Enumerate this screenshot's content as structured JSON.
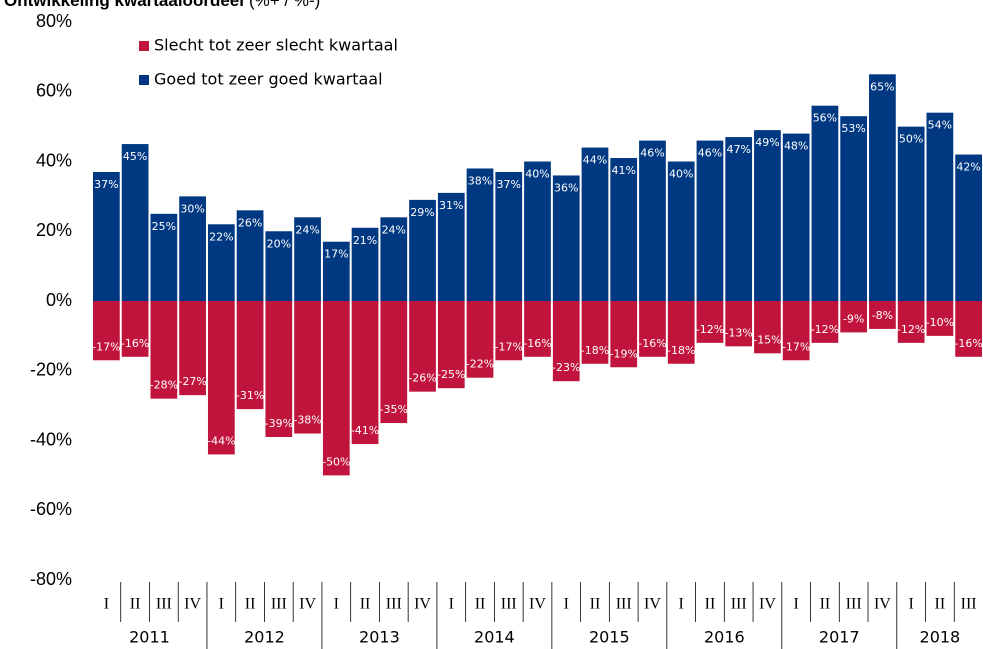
{
  "chart_data": {
    "type": "bar",
    "title": "Ontwikkeling kwartaaloordeel",
    "subtitle": "(%+ / %-)",
    "categories": [
      "I",
      "II",
      "III",
      "IV",
      "I",
      "II",
      "III",
      "IV",
      "I",
      "II",
      "III",
      "IV",
      "I",
      "II",
      "III",
      "IV",
      "I",
      "II",
      "III",
      "IV",
      "I",
      "II",
      "III",
      "IV",
      "I",
      "II",
      "III",
      "IV",
      "I",
      "II",
      "III"
    ],
    "year_labels": [
      "2011",
      "2012",
      "2013",
      "2014",
      "2015",
      "2016",
      "2017",
      "2018"
    ],
    "series": [
      {
        "name": "Slecht tot zeer slecht kwartaal",
        "color": "#c0143c",
        "values": [
          -17,
          -16,
          -28,
          -27,
          -44,
          -31,
          -39,
          -38,
          -50,
          -41,
          -35,
          -26,
          -25,
          -22,
          -17,
          -16,
          -23,
          -18,
          -19,
          -16,
          -18,
          -12,
          -13,
          -15,
          -17,
          -12,
          -9,
          -8,
          -12,
          -10,
          -16
        ],
        "value_labels": [
          "-17%",
          "-16%",
          "-28%",
          "-27%",
          "-44%",
          "-31%",
          "-39%",
          "-38%",
          "-50%",
          "-41%",
          "-35%",
          "-26%",
          "-25%",
          "-22%",
          "-17%",
          "-16%",
          "-23%",
          "-18%",
          "-19%",
          "-16%",
          "-18%",
          "-12%",
          "-13%",
          "-15%",
          "-17%",
          "-12%",
          "-9%",
          "-8%",
          "-12%",
          "-10%",
          "-16%"
        ]
      },
      {
        "name": "Goed tot zeer goed kwartaal",
        "color": "#003882",
        "values": [
          37,
          45,
          25,
          30,
          22,
          26,
          20,
          24,
          17,
          21,
          24,
          29,
          31,
          38,
          37,
          40,
          36,
          44,
          41,
          46,
          40,
          46,
          47,
          49,
          48,
          56,
          53,
          65,
          50,
          54,
          42
        ],
        "value_labels": [
          "37%",
          "45%",
          "25%",
          "30%",
          "22%",
          "26%",
          "20%",
          "24%",
          "17%",
          "21%",
          "24%",
          "29%",
          "31%",
          "38%",
          "37%",
          "40%",
          "36%",
          "44%",
          "41%",
          "46%",
          "40%",
          "46%",
          "47%",
          "49%",
          "48%",
          "56%",
          "53%",
          "65%",
          "50%",
          "54%",
          "42%"
        ]
      }
    ],
    "ylim": [
      -80,
      80
    ],
    "yticks": [
      {
        "value": -80,
        "label": "-80%"
      },
      {
        "value": -60,
        "label": "-60%"
      },
      {
        "value": -40,
        "label": "-40%"
      },
      {
        "value": -20,
        "label": "-20%"
      },
      {
        "value": 0,
        "label": "0%"
      },
      {
        "value": 20,
        "label": "20%"
      },
      {
        "value": 40,
        "label": "40%"
      },
      {
        "value": 60,
        "label": "60%"
      },
      {
        "value": 80,
        "label": "80%"
      }
    ],
    "legend": "upper left"
  }
}
